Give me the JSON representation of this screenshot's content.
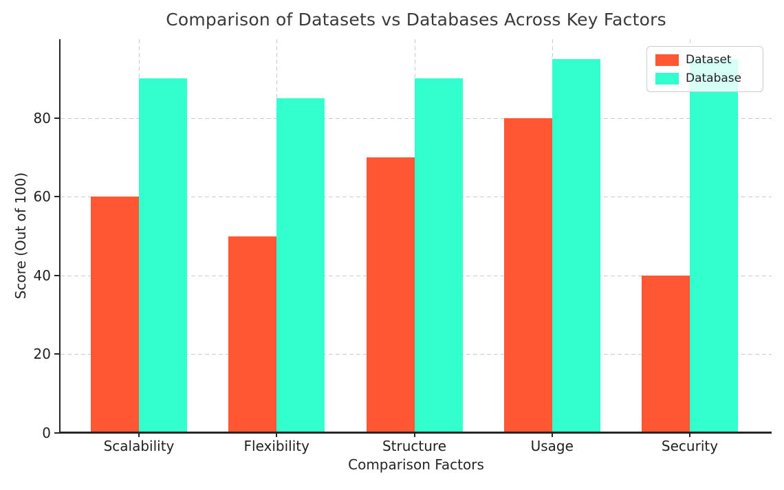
{
  "chart_data": {
    "type": "bar",
    "title": "Comparison of Datasets vs Databases Across Key Factors",
    "xlabel": "Comparison Factors",
    "ylabel": "Score (Out of 100)",
    "categories": [
      "Scalability",
      "Flexibility",
      "Structure",
      "Usage",
      "Security"
    ],
    "series": [
      {
        "name": "Dataset",
        "color": "#FF5733",
        "values": [
          60,
          50,
          70,
          80,
          40
        ]
      },
      {
        "name": "Database",
        "color": "#33FFCE",
        "values": [
          90,
          85,
          90,
          95,
          95
        ]
      }
    ],
    "ylim": [
      0,
      100
    ],
    "yticks": [
      0,
      20,
      40,
      60,
      80
    ],
    "grid": "dashed, both axes, light gray",
    "legend_position": "upper right",
    "legend_entries": [
      "Dataset",
      "Database"
    ]
  }
}
